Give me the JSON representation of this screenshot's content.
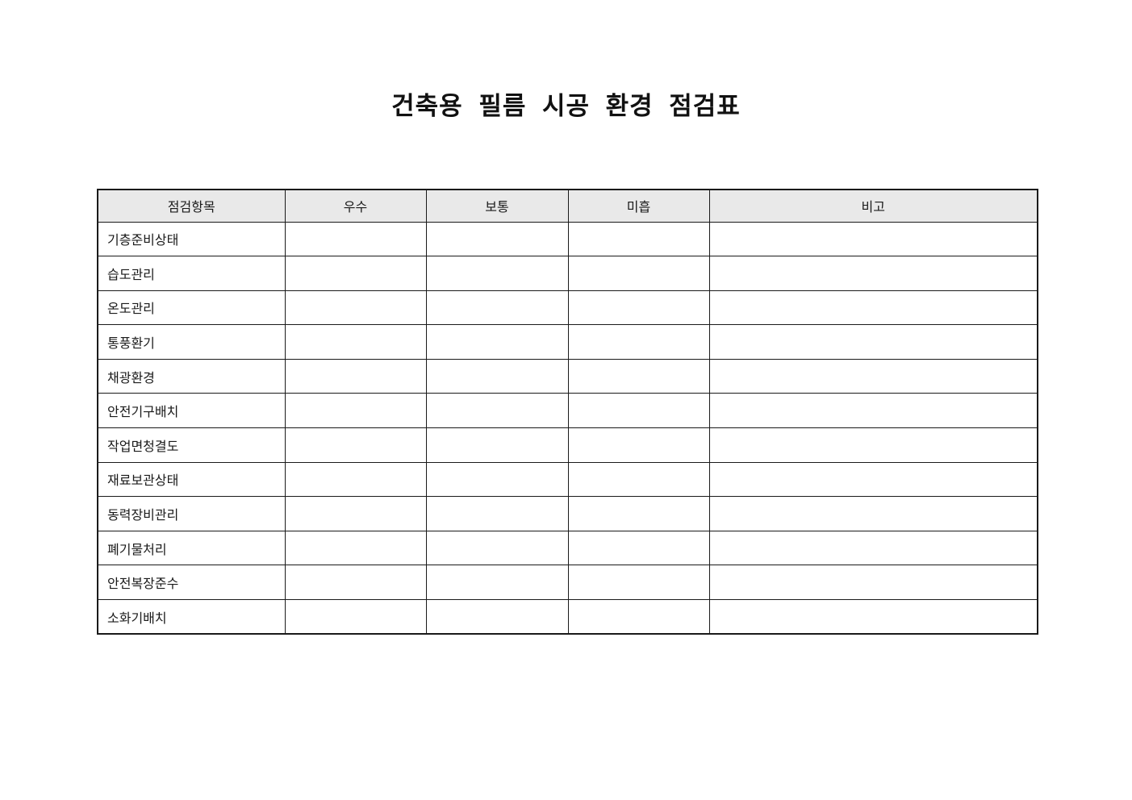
{
  "page": {
    "title": "건축용 필름 시공 환경 점검표"
  },
  "table": {
    "columns": [
      {
        "label": "점검항목"
      },
      {
        "label": "우수"
      },
      {
        "label": "보통"
      },
      {
        "label": "미흡"
      },
      {
        "label": "비고"
      }
    ],
    "rows": [
      {
        "item": "기층준비상태",
        "excellent": "",
        "average": "",
        "poor": "",
        "note": ""
      },
      {
        "item": "습도관리",
        "excellent": "",
        "average": "",
        "poor": "",
        "note": ""
      },
      {
        "item": "온도관리",
        "excellent": "",
        "average": "",
        "poor": "",
        "note": ""
      },
      {
        "item": "통풍환기",
        "excellent": "",
        "average": "",
        "poor": "",
        "note": ""
      },
      {
        "item": "채광환경",
        "excellent": "",
        "average": "",
        "poor": "",
        "note": ""
      },
      {
        "item": "안전기구배치",
        "excellent": "",
        "average": "",
        "poor": "",
        "note": ""
      },
      {
        "item": "작업면청결도",
        "excellent": "",
        "average": "",
        "poor": "",
        "note": ""
      },
      {
        "item": "재료보관상태",
        "excellent": "",
        "average": "",
        "poor": "",
        "note": ""
      },
      {
        "item": "동력장비관리",
        "excellent": "",
        "average": "",
        "poor": "",
        "note": ""
      },
      {
        "item": "폐기물처리",
        "excellent": "",
        "average": "",
        "poor": "",
        "note": ""
      },
      {
        "item": "안전복장준수",
        "excellent": "",
        "average": "",
        "poor": "",
        "note": ""
      },
      {
        "item": "소화기배치",
        "excellent": "",
        "average": "",
        "poor": "",
        "note": ""
      }
    ]
  },
  "colors": {
    "header_bg": "#e9e9e9",
    "border": "#1a1a1a",
    "text": "#1a1a1a",
    "page_bg": "#ffffff"
  }
}
